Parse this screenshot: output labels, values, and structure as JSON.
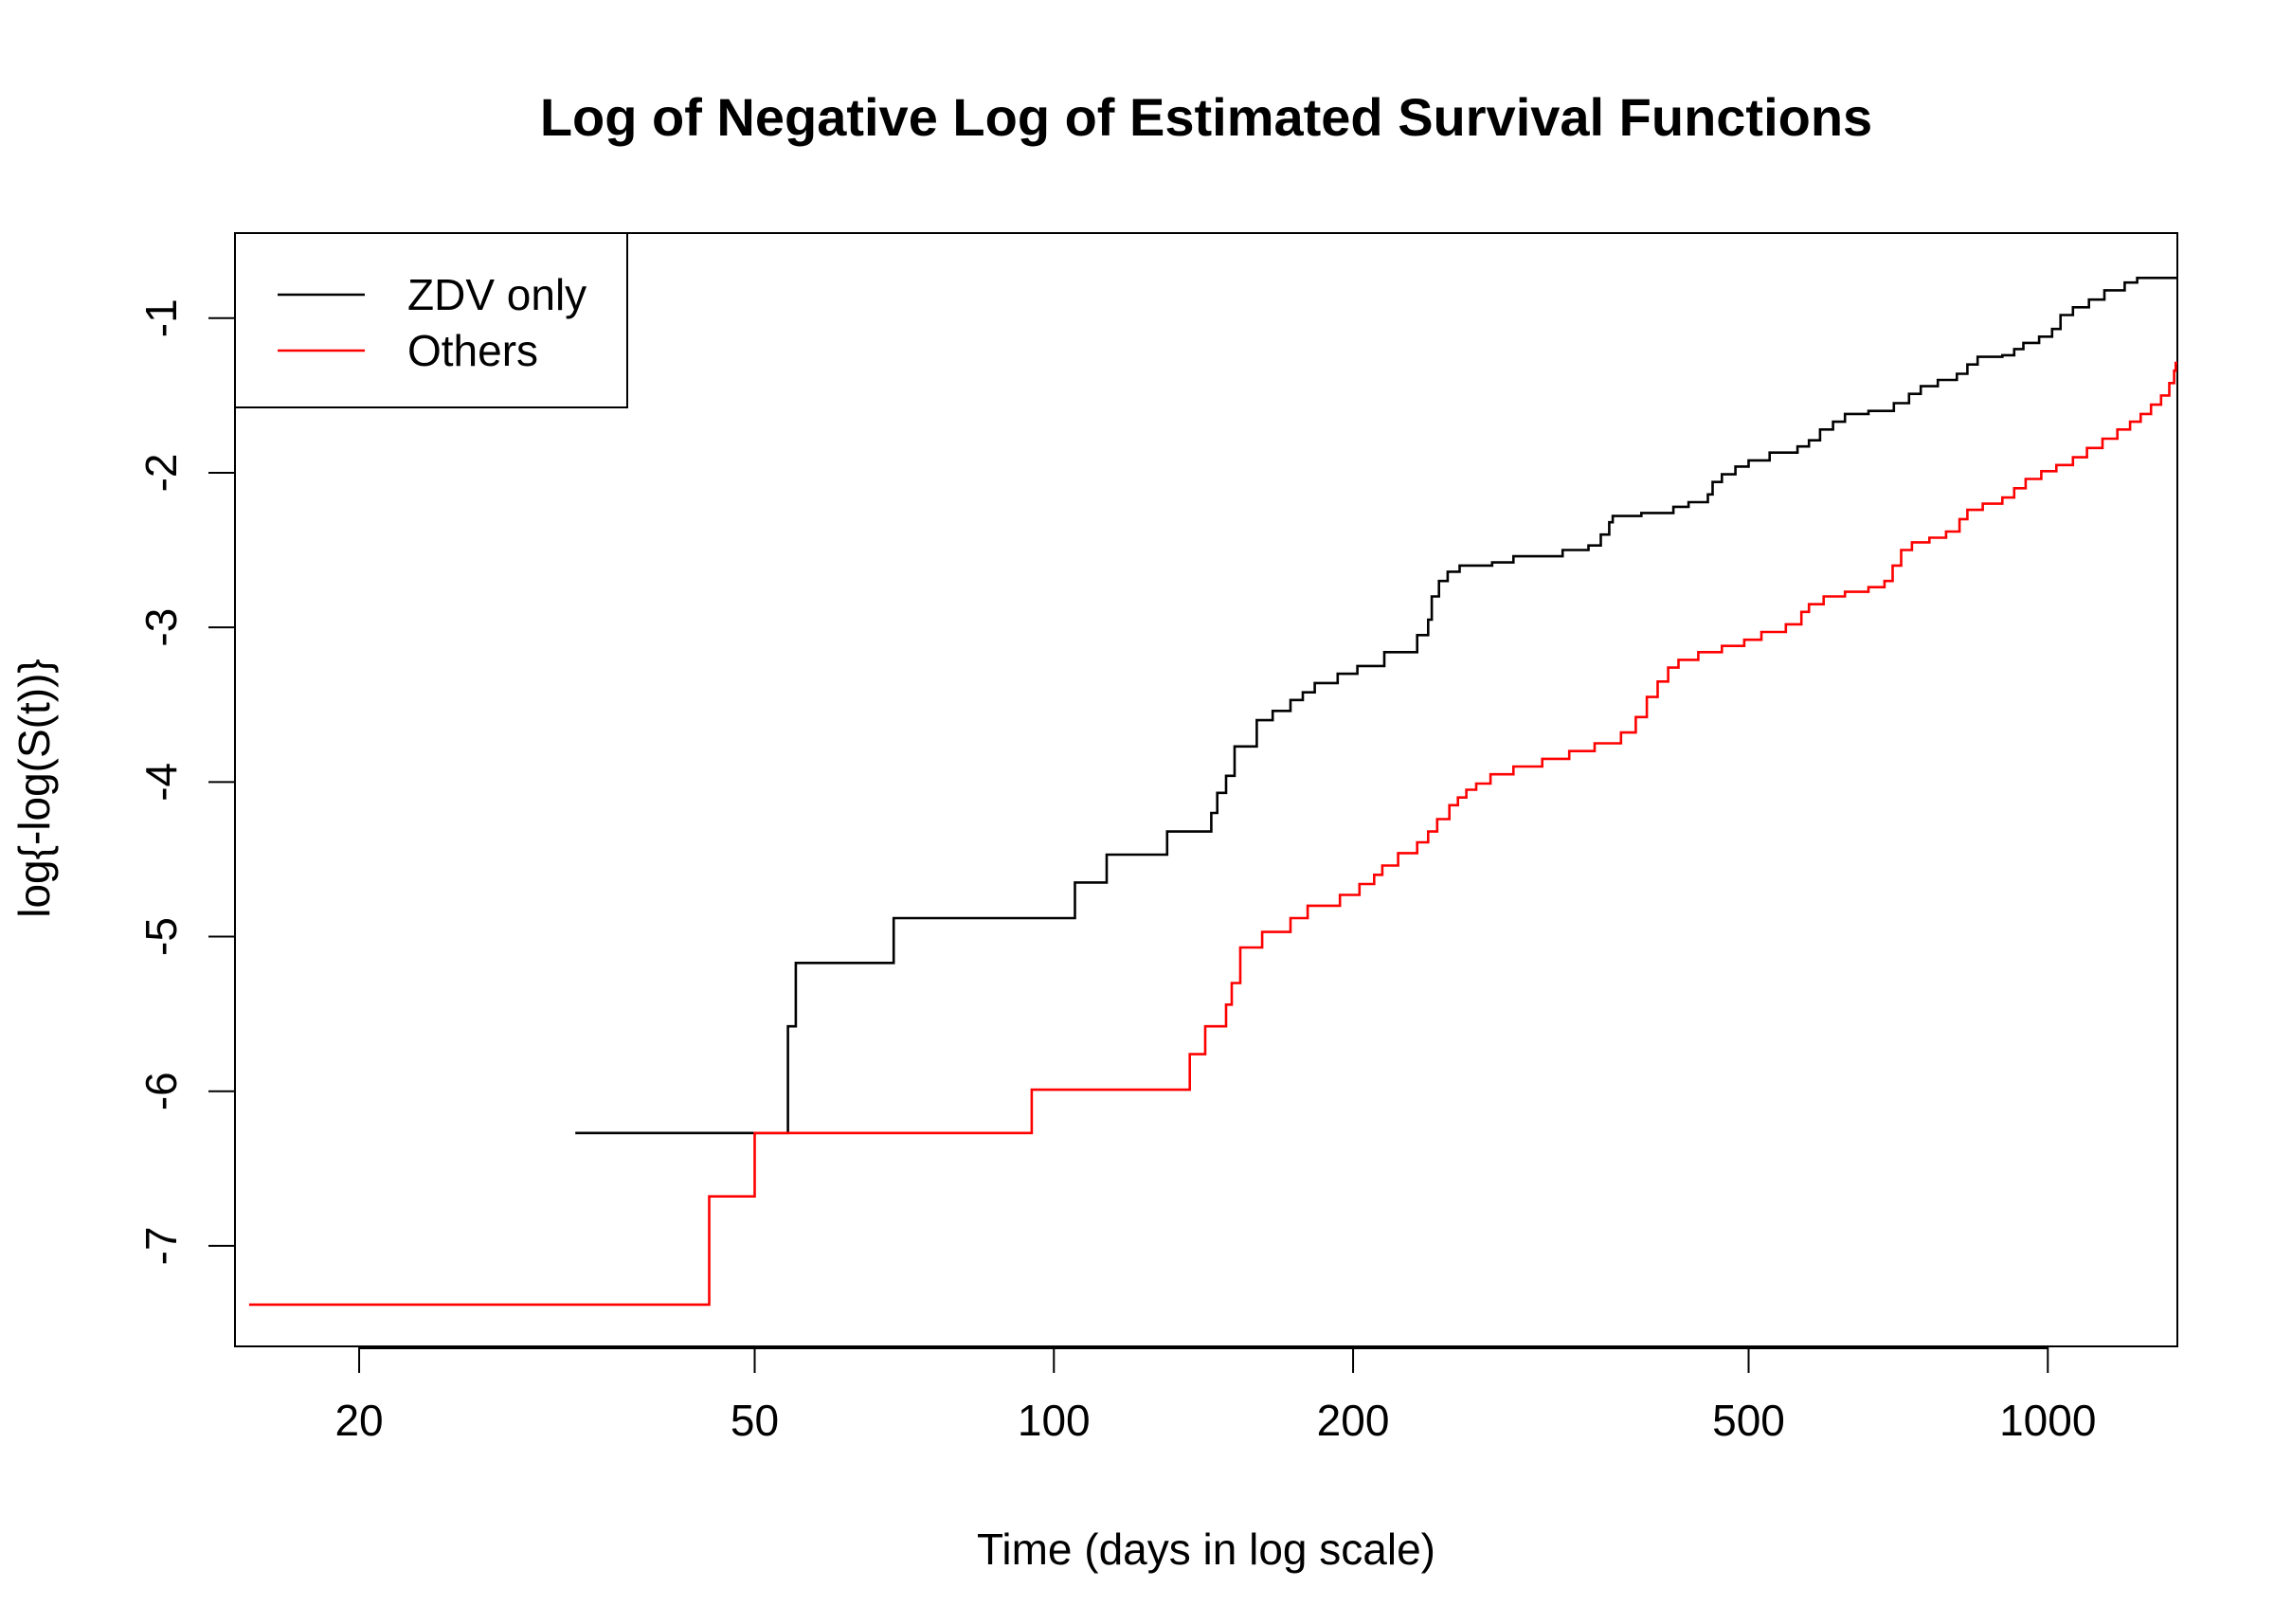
{
  "chart_data": {
    "type": "line",
    "title": "Log of Negative Log of Estimated Survival Functions",
    "xlabel": "Time (days in log scale)",
    "ylabel": "log{-log(S(t))}",
    "x_scale": "log",
    "xlim": [
      15,
      1350
    ],
    "ylim": [
      -7.65,
      -0.45
    ],
    "x_ticks": [
      20,
      50,
      100,
      200,
      500,
      1000
    ],
    "x_tick_labels": [
      "20",
      "50",
      "100",
      "200",
      "500",
      "1000"
    ],
    "y_ticks": [
      -7,
      -6,
      -5,
      -4,
      -3,
      -2,
      -1
    ],
    "y_tick_labels": [
      "-7",
      "-6",
      "-5",
      "-4",
      "-3",
      "-2",
      "-1"
    ],
    "grid": false,
    "legend_position": "top-left",
    "series": [
      {
        "name": "ZDV only",
        "color": "#000000",
        "step": true,
        "points": [
          [
            33,
            -6.27
          ],
          [
            54,
            -5.58
          ],
          [
            55,
            -5.17
          ],
          [
            69,
            -4.88
          ],
          [
            105,
            -4.65
          ],
          [
            113,
            -4.47
          ],
          [
            130,
            -4.32
          ],
          [
            144,
            -4.2
          ],
          [
            146,
            -4.07
          ],
          [
            149,
            -3.96
          ],
          [
            152,
            -3.77
          ],
          [
            160,
            -3.6
          ],
          [
            166,
            -3.54
          ],
          [
            173,
            -3.47
          ],
          [
            178,
            -3.42
          ],
          [
            183,
            -3.36
          ],
          [
            193,
            -3.3
          ],
          [
            202,
            -3.25
          ],
          [
            215,
            -3.16
          ],
          [
            232,
            -3.05
          ],
          [
            238,
            -2.95
          ],
          [
            240,
            -2.8
          ],
          [
            244,
            -2.7
          ],
          [
            249,
            -2.64
          ],
          [
            256,
            -2.6
          ],
          [
            276,
            -2.58
          ],
          [
            290,
            -2.54
          ],
          [
            325,
            -2.5
          ],
          [
            345,
            -2.47
          ],
          [
            355,
            -2.4
          ],
          [
            362,
            -2.32
          ],
          [
            365,
            -2.28
          ],
          [
            390,
            -2.26
          ],
          [
            420,
            -2.22
          ],
          [
            435,
            -2.19
          ],
          [
            455,
            -2.14
          ],
          [
            460,
            -2.06
          ],
          [
            470,
            -2.01
          ],
          [
            485,
            -1.96
          ],
          [
            500,
            -1.92
          ],
          [
            525,
            -1.87
          ],
          [
            560,
            -1.83
          ],
          [
            575,
            -1.79
          ],
          [
            590,
            -1.72
          ],
          [
            608,
            -1.67
          ],
          [
            625,
            -1.62
          ],
          [
            660,
            -1.6
          ],
          [
            700,
            -1.55
          ],
          [
            725,
            -1.49
          ],
          [
            745,
            -1.44
          ],
          [
            775,
            -1.4
          ],
          [
            810,
            -1.36
          ],
          [
            830,
            -1.3
          ],
          [
            850,
            -1.25
          ],
          [
            900,
            -1.24
          ],
          [
            925,
            -1.2
          ],
          [
            945,
            -1.16
          ],
          [
            980,
            -1.12
          ],
          [
            1010,
            -1.07
          ],
          [
            1030,
            -0.98
          ],
          [
            1060,
            -0.93
          ],
          [
            1100,
            -0.88
          ],
          [
            1140,
            -0.82
          ],
          [
            1195,
            -0.77
          ],
          [
            1230,
            -0.74
          ],
          [
            1350,
            -0.74
          ]
        ]
      },
      {
        "name": "Others",
        "color": "#ff0000",
        "step": true,
        "points": [
          [
            15.5,
            -7.38
          ],
          [
            45,
            -6.68
          ],
          [
            50,
            -6.27
          ],
          [
            95,
            -5.99
          ],
          [
            137,
            -5.76
          ],
          [
            142,
            -5.58
          ],
          [
            149,
            -5.44
          ],
          [
            151,
            -5.3
          ],
          [
            154,
            -5.07
          ],
          [
            162,
            -4.97
          ],
          [
            173,
            -4.88
          ],
          [
            180,
            -4.8
          ],
          [
            194,
            -4.73
          ],
          [
            203,
            -4.66
          ],
          [
            210,
            -4.6
          ],
          [
            214,
            -4.54
          ],
          [
            222,
            -4.46
          ],
          [
            232,
            -4.39
          ],
          [
            238,
            -4.32
          ],
          [
            243,
            -4.24
          ],
          [
            250,
            -4.15
          ],
          [
            255,
            -4.1
          ],
          [
            260,
            -4.05
          ],
          [
            266,
            -4.01
          ],
          [
            275,
            -3.95
          ],
          [
            290,
            -3.9
          ],
          [
            310,
            -3.85
          ],
          [
            330,
            -3.8
          ],
          [
            350,
            -3.75
          ],
          [
            372,
            -3.68
          ],
          [
            385,
            -3.58
          ],
          [
            395,
            -3.45
          ],
          [
            405,
            -3.35
          ],
          [
            415,
            -3.26
          ],
          [
            425,
            -3.21
          ],
          [
            445,
            -3.16
          ],
          [
            470,
            -3.12
          ],
          [
            495,
            -3.08
          ],
          [
            515,
            -3.03
          ],
          [
            545,
            -2.98
          ],
          [
            565,
            -2.9
          ],
          [
            575,
            -2.85
          ],
          [
            595,
            -2.8
          ],
          [
            625,
            -2.77
          ],
          [
            660,
            -2.74
          ],
          [
            685,
            -2.7
          ],
          [
            698,
            -2.6
          ],
          [
            712,
            -2.5
          ],
          [
            730,
            -2.45
          ],
          [
            760,
            -2.42
          ],
          [
            790,
            -2.38
          ],
          [
            815,
            -2.3
          ],
          [
            830,
            -2.24
          ],
          [
            860,
            -2.2
          ],
          [
            900,
            -2.16
          ],
          [
            925,
            -2.1
          ],
          [
            950,
            -2.04
          ],
          [
            985,
            -1.99
          ],
          [
            1020,
            -1.95
          ],
          [
            1060,
            -1.9
          ],
          [
            1095,
            -1.84
          ],
          [
            1135,
            -1.78
          ],
          [
            1175,
            -1.72
          ],
          [
            1210,
            -1.67
          ],
          [
            1240,
            -1.62
          ],
          [
            1270,
            -1.56
          ],
          [
            1300,
            -1.5
          ],
          [
            1325,
            -1.42
          ],
          [
            1340,
            -1.34
          ],
          [
            1345,
            -1.29
          ],
          [
            1350,
            -1.29
          ]
        ]
      }
    ]
  }
}
